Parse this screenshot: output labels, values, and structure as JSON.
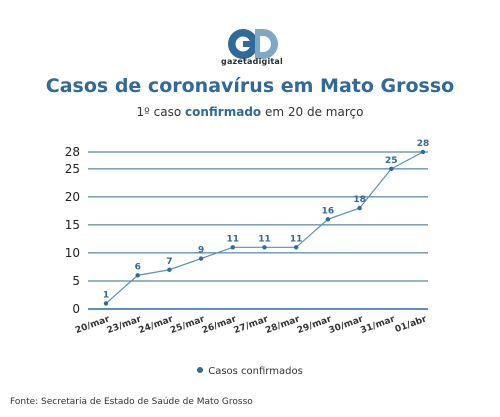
{
  "logo": {
    "monogram": "GD",
    "text": "gazetadigital",
    "colors": {
      "primary": "#2f6a9b",
      "secondary": "#7fa7c7"
    }
  },
  "header": {
    "title": "Casos de coronavírus em Mato Grosso",
    "subtitle_pre": "1º caso ",
    "subtitle_highlight": "confirmado",
    "subtitle_post": " em 20 de março"
  },
  "legend": {
    "label": "Casos confirmados"
  },
  "source": "Fonte: Secretaria de Estado de Saúde de Mato Grosso",
  "colors": {
    "line": "#5b8fc4",
    "point": "#2f6a9b",
    "grid": "#2f6a9b",
    "label": "#2f6a9b"
  },
  "chart_data": {
    "type": "line",
    "categories": [
      "20/mar",
      "23/mar",
      "24/mar",
      "25/mar",
      "26/mar",
      "27/mar",
      "28/mar",
      "29/mar",
      "30/mar",
      "31/mar",
      "01/abr"
    ],
    "series": [
      {
        "name": "Casos confirmados",
        "values": [
          1,
          6,
          7,
          9,
          11,
          11,
          11,
          16,
          18,
          25,
          28
        ]
      }
    ],
    "yticks": [
      0,
      5,
      10,
      15,
      20,
      25,
      28
    ],
    "ylim": [
      0,
      28
    ],
    "grid": true,
    "legend": "bottom"
  }
}
